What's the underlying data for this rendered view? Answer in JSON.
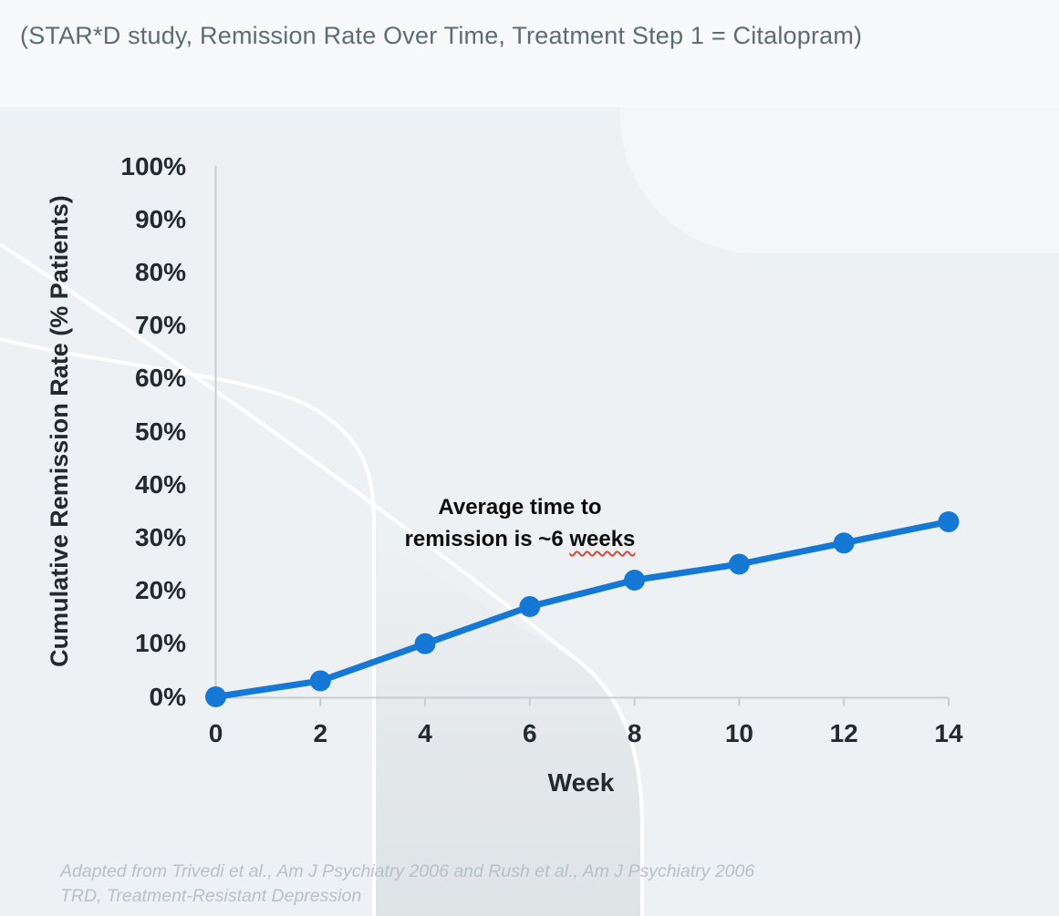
{
  "title": "(STAR*D study, Remission Rate Over Time, Treatment Step 1 = Citalopram)",
  "annotation": {
    "line1": "Average time to",
    "line2_prefix": "remission is ~6 ",
    "line2_underlined": "weeks"
  },
  "footer": {
    "line1": "Adapted from Trivedi et al., Am J Psychiatry 2006 and Rush et al., Am J Psychiatry 2006",
    "line2": "TRD, Treatment-Resistant Depression"
  },
  "colors": {
    "line": "#1478d4",
    "marker": "#1478d4",
    "axis": "#c7cdd1",
    "title_text": "#5c6c71",
    "tick_text": "#222a2e",
    "annotation_text": "#0d0d0d",
    "annotation_underline": "#d04a3a",
    "footer_text": "#b7c2c8",
    "background_top": "#f7f9fa",
    "background_main": "#eef1f3"
  },
  "chart_data": {
    "type": "line",
    "title": "(STAR*D study, Remission Rate Over Time, Treatment Step 1 = Citalopram)",
    "xlabel": "Week",
    "ylabel": "Cumulative Remission Rate (% Patients)",
    "x": [
      0,
      2,
      4,
      6,
      8,
      10,
      12,
      14
    ],
    "series": [
      {
        "name": "Cumulative remission rate (% patients)",
        "values": [
          0,
          3,
          10,
          17,
          22,
          25,
          29,
          33
        ]
      }
    ],
    "xlim": [
      0,
      14
    ],
    "ylim": [
      0,
      100
    ],
    "grid": false,
    "legend": "none",
    "marker": "circle",
    "xticks": [
      {
        "v": 0,
        "label": "0"
      },
      {
        "v": 2,
        "label": "2"
      },
      {
        "v": 4,
        "label": "4"
      },
      {
        "v": 6,
        "label": "6"
      },
      {
        "v": 8,
        "label": "8"
      },
      {
        "v": 10,
        "label": "10"
      },
      {
        "v": 12,
        "label": "12"
      },
      {
        "v": 14,
        "label": "14"
      }
    ],
    "yticks": [
      {
        "v": 0,
        "label": "0%"
      },
      {
        "v": 10,
        "label": "10%"
      },
      {
        "v": 20,
        "label": "20%"
      },
      {
        "v": 30,
        "label": "30%"
      },
      {
        "v": 40,
        "label": "40%"
      },
      {
        "v": 50,
        "label": "50%"
      },
      {
        "v": 60,
        "label": "60%"
      },
      {
        "v": 70,
        "label": "70%"
      },
      {
        "v": 80,
        "label": "80%"
      },
      {
        "v": 90,
        "label": "90%"
      },
      {
        "v": 100,
        "label": "100%"
      }
    ],
    "annotations": [
      "Average time to remission is ~6 weeks"
    ]
  }
}
